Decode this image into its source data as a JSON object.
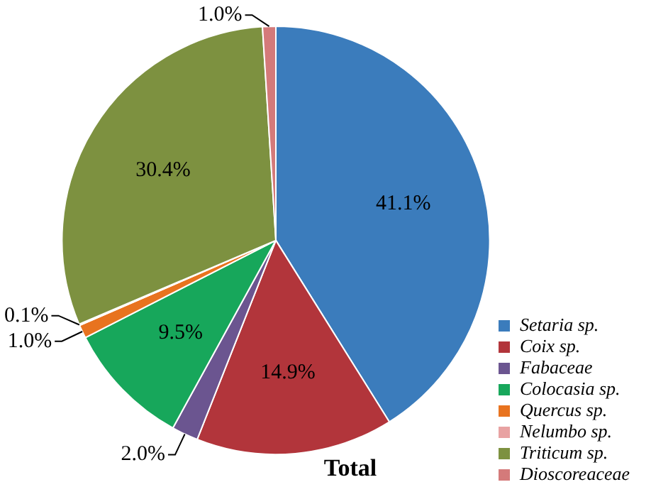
{
  "chart_data": {
    "type": "pie",
    "title": "Total",
    "categories": [
      "Setaria sp.",
      "Coix sp.",
      "Fabaceae",
      "Colocasia sp.",
      "Quercus sp.",
      "Nelumbo sp.",
      "Triticum sp.",
      "Dioscoreaceae"
    ],
    "values": [
      41.1,
      14.9,
      2.0,
      9.5,
      1.0,
      0.1,
      30.4,
      1.0
    ],
    "colors": [
      "#3b7cbc",
      "#b2353b",
      "#6b5590",
      "#17a75b",
      "#e8731f",
      "#e8a2a2",
      "#7d9140",
      "#d47a7a"
    ],
    "value_labels": [
      "41.1%",
      "14.9%",
      "2.0%",
      "9.5%",
      "1.0%",
      "0.1%",
      "30.4%",
      "1.0%"
    ],
    "legend": "bottom right"
  }
}
